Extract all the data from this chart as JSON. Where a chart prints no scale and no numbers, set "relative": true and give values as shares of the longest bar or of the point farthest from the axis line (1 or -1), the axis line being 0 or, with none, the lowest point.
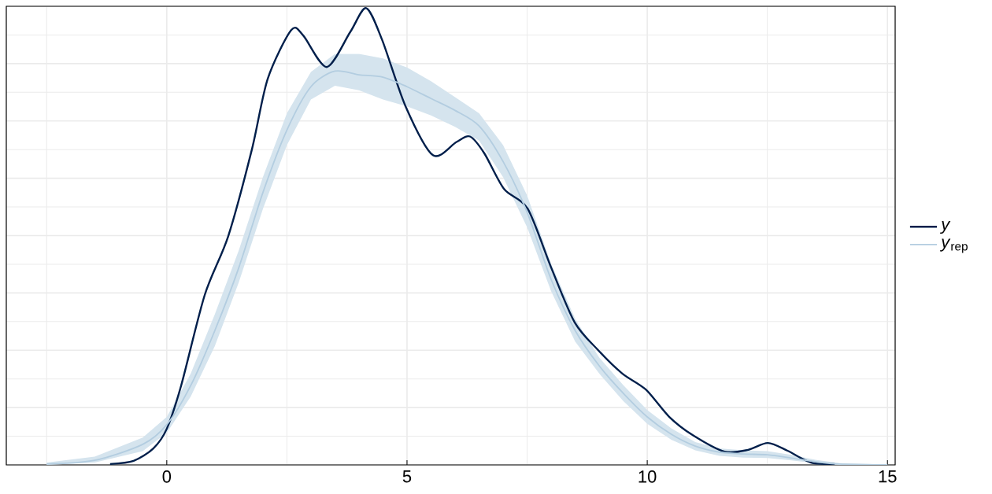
{
  "chart_data": {
    "type": "line",
    "relative": true,
    "grid": true,
    "legend": "right",
    "xlim": [
      -3.34,
      15.16
    ],
    "xticks": [
      {
        "value": -2.5,
        "label": null
      },
      0,
      {
        "value": 2.5,
        "label": null
      },
      5,
      {
        "value": 7.5,
        "label": null
      },
      10,
      {
        "value": 12.5,
        "label": null
      },
      15
    ],
    "series": [
      {
        "name": "y",
        "color": "#011f4b",
        "x": [
          -1.18,
          -0.69,
          -0.28,
          0,
          0.3,
          0.79,
          1.28,
          1.77,
          2.1,
          2.59,
          2.84,
          3.33,
          3.82,
          4.15,
          4.48,
          4.97,
          5.54,
          6.03,
          6.31,
          6.61,
          7.02,
          7.51,
          8.0,
          8.49,
          8.98,
          9.48,
          9.97,
          10.46,
          10.95,
          11.61,
          12.1,
          12.51,
          12.92,
          13.41,
          13.9
        ],
        "values": [
          0.002,
          0.009,
          0.036,
          0.079,
          0.174,
          0.372,
          0.501,
          0.69,
          0.845,
          0.952,
          0.94,
          0.871,
          0.948,
          1,
          0.931,
          0.785,
          0.678,
          0.707,
          0.719,
          0.682,
          0.604,
          0.561,
          0.432,
          0.312,
          0.251,
          0.2,
          0.165,
          0.105,
          0.065,
          0.029,
          0.033,
          0.048,
          0.031,
          0.005,
          0.002
        ]
      },
      {
        "name": "*y*$_{rep}$",
        "color": "#b3cde0",
        "x": [
          -2.5,
          -1.5,
          -0.5,
          0,
          0.5,
          1,
          1.5,
          2,
          2.5,
          3,
          3.5,
          4,
          4.5,
          5,
          5.5,
          6,
          6.5,
          7,
          7.5,
          8,
          8.5,
          9,
          9.5,
          10,
          10.5,
          11,
          11.5,
          12,
          12.5,
          13,
          13.5,
          14,
          15
        ],
        "values": [
          0.002,
          0.01,
          0.045,
          0.088,
          0.174,
          0.294,
          0.432,
          0.596,
          0.733,
          0.828,
          0.862,
          0.854,
          0.849,
          0.828,
          0.802,
          0.776,
          0.742,
          0.664,
          0.553,
          0.406,
          0.294,
          0.217,
          0.157,
          0.105,
          0.067,
          0.041,
          0.028,
          0.024,
          0.022,
          0.015,
          0.007,
          0.002,
          0
        ],
        "lower": [
          0,
          0.005,
          0.03,
          0.07,
          0.15,
          0.26,
          0.4,
          0.56,
          0.7,
          0.8,
          0.83,
          0.82,
          0.8,
          0.785,
          0.765,
          0.74,
          0.71,
          0.63,
          0.52,
          0.38,
          0.27,
          0.2,
          0.14,
          0.09,
          0.055,
          0.032,
          0.02,
          0.016,
          0.015,
          0.01,
          0.004,
          0,
          0
        ],
        "upper": [
          0.005,
          0.018,
          0.06,
          0.105,
          0.2,
          0.33,
          0.47,
          0.63,
          0.77,
          0.86,
          0.9,
          0.9,
          0.89,
          0.87,
          0.84,
          0.805,
          0.77,
          0.7,
          0.59,
          0.44,
          0.32,
          0.235,
          0.175,
          0.12,
          0.08,
          0.05,
          0.036,
          0.032,
          0.03,
          0.022,
          0.011,
          0.004,
          0.001
        ]
      }
    ]
  }
}
